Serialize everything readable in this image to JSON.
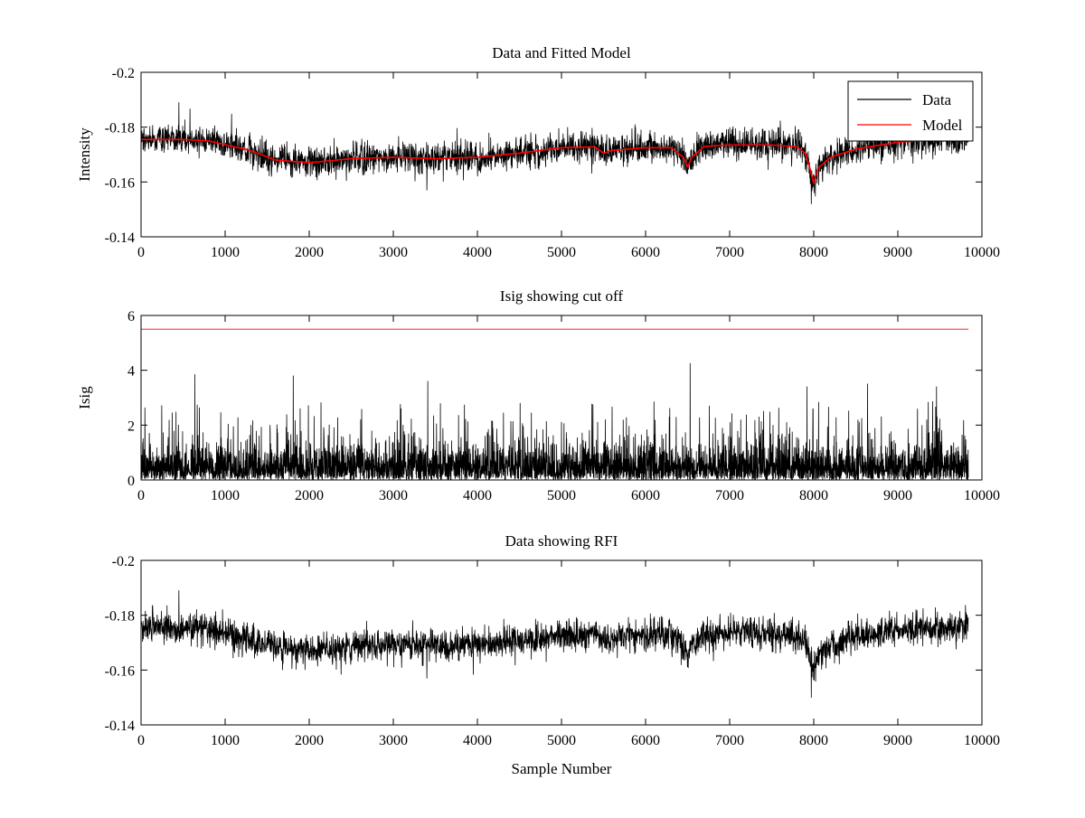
{
  "figure": {
    "background": "#ffffff",
    "colors": {
      "data": "#000000",
      "model": "#ff0000",
      "cutoff": "#ff0000"
    }
  },
  "chart_data": [
    {
      "type": "line",
      "title": "Data and Fitted Model",
      "xlabel": "",
      "ylabel": "Intensity",
      "xlim": [
        0,
        10000
      ],
      "ylim": [
        -0.2,
        -0.14
      ],
      "yreversed": true,
      "xticks": [
        0,
        1000,
        2000,
        3000,
        4000,
        5000,
        6000,
        7000,
        8000,
        9000,
        10000
      ],
      "yticks": [
        -0.2,
        -0.18,
        -0.16,
        -0.14
      ],
      "ytick_labels": [
        "-0.2",
        "-0.18",
        "-0.16",
        "-0.14"
      ],
      "grid": false,
      "legend": {
        "position": "top-right",
        "entries": [
          "Data",
          "Model"
        ]
      },
      "num_samples": 9840,
      "series": [
        {
          "name": "Data",
          "color": "#000000",
          "style": "noisy",
          "noise_amplitude": 0.0035,
          "spikes": [
            {
              "x": 6500,
              "y": -0.163
            },
            {
              "x": 7970,
              "y": -0.152
            },
            {
              "x": 3400,
              "y": -0.157
            },
            {
              "x": 450,
              "y": -0.189
            }
          ],
          "baseline": {
            "x": [
              0,
              500,
              800,
              1300,
              1600,
              2000,
              2500,
              3000,
              3500,
              4000,
              4500,
              5000,
              5400,
              5500,
              5600,
              6000,
              6300,
              6450,
              6500,
              6550,
              6700,
              7000,
              7500,
              7800,
              7900,
              7950,
              8000,
              8050,
              8200,
              8500,
              9000,
              9500,
              9840
            ],
            "y": [
              -0.1755,
              -0.1755,
              -0.175,
              -0.1715,
              -0.168,
              -0.167,
              -0.1685,
              -0.169,
              -0.1685,
              -0.169,
              -0.1705,
              -0.1725,
              -0.1728,
              -0.1705,
              -0.1715,
              -0.1725,
              -0.1725,
              -0.169,
              -0.1655,
              -0.169,
              -0.173,
              -0.1735,
              -0.1735,
              -0.1728,
              -0.1705,
              -0.1655,
              -0.1595,
              -0.165,
              -0.169,
              -0.172,
              -0.1745,
              -0.1755,
              -0.1755
            ]
          }
        },
        {
          "name": "Model",
          "color": "#ff0000",
          "style": "smooth",
          "x": [
            0,
            500,
            800,
            1300,
            1600,
            2000,
            2500,
            3000,
            3500,
            4000,
            4500,
            5000,
            5400,
            5500,
            5600,
            6000,
            6300,
            6450,
            6500,
            6550,
            6700,
            7000,
            7500,
            7800,
            7900,
            7950,
            8000,
            8050,
            8200,
            8500,
            9000,
            9500,
            9840
          ],
          "y": [
            -0.1755,
            -0.1755,
            -0.175,
            -0.1715,
            -0.168,
            -0.167,
            -0.1685,
            -0.169,
            -0.1685,
            -0.169,
            -0.1705,
            -0.1725,
            -0.1728,
            -0.1705,
            -0.1715,
            -0.1725,
            -0.1725,
            -0.169,
            -0.1655,
            -0.169,
            -0.173,
            -0.1735,
            -0.1735,
            -0.1728,
            -0.1705,
            -0.1655,
            -0.1595,
            -0.165,
            -0.169,
            -0.172,
            -0.1745,
            -0.1755,
            -0.1755
          ]
        }
      ]
    },
    {
      "type": "line",
      "title": "Isig showing cut off",
      "xlabel": "",
      "ylabel": "Isig",
      "xlim": [
        0,
        10000
      ],
      "ylim": [
        0,
        6
      ],
      "yreversed": false,
      "xticks": [
        0,
        1000,
        2000,
        3000,
        4000,
        5000,
        6000,
        7000,
        8000,
        9000,
        10000
      ],
      "yticks": [
        0,
        2,
        4,
        6
      ],
      "ytick_labels": [
        "0",
        "2",
        "4",
        "6"
      ],
      "grid": false,
      "num_samples": 9840,
      "series": [
        {
          "name": "Isig",
          "color": "#000000",
          "style": "abs-noise",
          "typical_max": 2.2,
          "spikes": [
            {
              "x": 6530,
              "y": 4.25
            },
            {
              "x": 640,
              "y": 3.85
            },
            {
              "x": 1810,
              "y": 3.8
            },
            {
              "x": 3410,
              "y": 3.6
            },
            {
              "x": 8640,
              "y": 3.5
            },
            {
              "x": 7920,
              "y": 3.4
            },
            {
              "x": 9460,
              "y": 3.4
            }
          ]
        },
        {
          "name": "Cutoff",
          "color": "#ff0000",
          "style": "flat",
          "x": [
            0,
            9840
          ],
          "y": [
            5.5,
            5.5
          ]
        }
      ]
    },
    {
      "type": "line",
      "title": "Data showing RFI",
      "xlabel": "Sample Number",
      "ylabel": "",
      "xlim": [
        0,
        10000
      ],
      "ylim": [
        -0.2,
        -0.14
      ],
      "yreversed": true,
      "xticks": [
        0,
        1000,
        2000,
        3000,
        4000,
        5000,
        6000,
        7000,
        8000,
        9000,
        10000
      ],
      "yticks": [
        -0.2,
        -0.18,
        -0.16,
        -0.14
      ],
      "ytick_labels": [
        "-0.2",
        "-0.18",
        "-0.16",
        "-0.14"
      ],
      "grid": false,
      "num_samples": 9840,
      "series": [
        {
          "name": "Data",
          "color": "#000000",
          "style": "noisy",
          "noise_amplitude": 0.0035,
          "spikes": [
            {
              "x": 6500,
              "y": -0.163
            },
            {
              "x": 7970,
              "y": -0.15
            },
            {
              "x": 3400,
              "y": -0.157
            },
            {
              "x": 450,
              "y": -0.189
            }
          ],
          "baseline": {
            "x": [
              0,
              500,
              800,
              1300,
              1600,
              2000,
              2500,
              3000,
              3500,
              4000,
              4500,
              5000,
              5400,
              5500,
              5600,
              6000,
              6300,
              6450,
              6500,
              6550,
              6700,
              7000,
              7500,
              7800,
              7900,
              7950,
              8000,
              8050,
              8200,
              8500,
              9000,
              9500,
              9840
            ],
            "y": [
              -0.1755,
              -0.1755,
              -0.175,
              -0.1715,
              -0.168,
              -0.167,
              -0.1685,
              -0.169,
              -0.1685,
              -0.169,
              -0.1705,
              -0.1725,
              -0.1728,
              -0.1705,
              -0.1715,
              -0.1725,
              -0.1725,
              -0.169,
              -0.1655,
              -0.169,
              -0.173,
              -0.1735,
              -0.1735,
              -0.1728,
              -0.1705,
              -0.1655,
              -0.1595,
              -0.165,
              -0.169,
              -0.172,
              -0.1745,
              -0.1755,
              -0.1755
            ]
          }
        }
      ]
    }
  ]
}
